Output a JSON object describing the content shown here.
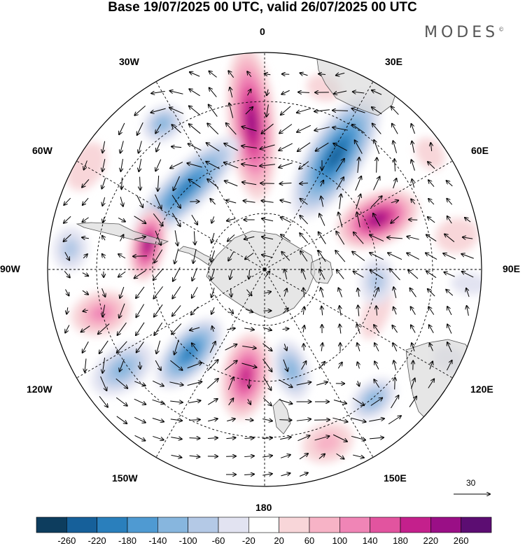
{
  "header": {
    "title": "Base 19/07/2025 00 UTC, valid 26/07/2025 00 UTC",
    "brand": "MODES",
    "brand_mark": "©"
  },
  "map": {
    "projection": "polar-stereographic-south",
    "longitude_labels": {
      "top": "0",
      "bottom": "180",
      "left": "90W",
      "right": "90E",
      "ul1": "30W",
      "ul2": "60W",
      "ur1": "30E",
      "ur2": "60E",
      "ll1": "120W",
      "ll2": "150W",
      "lr1": "120E",
      "lr2": "150E"
    },
    "vector_scale": {
      "value": "30"
    },
    "anomaly_centers": [
      {
        "lon": -5,
        "r": 0.68,
        "value": 260,
        "rx": 0.11,
        "ry": 0.36
      },
      {
        "lon": 32,
        "r": 0.62,
        "value": -240,
        "rx": 0.13,
        "ry": 0.33
      },
      {
        "lon": 66,
        "r": 0.57,
        "value": 250,
        "rx": 0.12,
        "ry": 0.2
      },
      {
        "lon": -44,
        "r": 0.52,
        "value": -200,
        "rx": 0.33,
        "ry": 0.1
      },
      {
        "lon": -35,
        "r": 0.82,
        "value": -120,
        "rx": 0.1,
        "ry": 0.08
      },
      {
        "lon": -78,
        "r": 0.55,
        "value": 240,
        "rx": 0.17,
        "ry": 0.08
      },
      {
        "lon": -84,
        "r": 0.9,
        "value": -80,
        "rx": 0.1,
        "ry": 0.08
      },
      {
        "lon": -105,
        "r": 0.78,
        "value": 120,
        "rx": 0.1,
        "ry": 0.14
      },
      {
        "lon": -138,
        "r": 0.52,
        "value": -200,
        "rx": 0.1,
        "ry": 0.2
      },
      {
        "lon": -125,
        "r": 0.8,
        "value": -130,
        "rx": 0.1,
        "ry": 0.16
      },
      {
        "lon": -170,
        "r": 0.5,
        "value": 200,
        "rx": 0.11,
        "ry": 0.2
      },
      {
        "lon": 165,
        "r": 0.48,
        "value": -140,
        "rx": 0.08,
        "ry": 0.14
      },
      {
        "lon": 140,
        "r": 0.78,
        "value": -150,
        "rx": 0.12,
        "ry": 0.08
      },
      {
        "lon": 160,
        "r": 0.85,
        "value": 110,
        "rx": 0.12,
        "ry": 0.09
      },
      {
        "lon": 110,
        "r": 0.55,
        "value": 60,
        "rx": 0.14,
        "ry": 0.06
      },
      {
        "lon": 96,
        "r": 0.52,
        "value": -100,
        "rx": 0.11,
        "ry": 0.08
      },
      {
        "lon": 116,
        "r": 0.95,
        "value": -60,
        "rx": 0.06,
        "ry": 0.08
      },
      {
        "lon": 80,
        "r": 0.9,
        "value": 60,
        "rx": 0.08,
        "ry": 0.1
      },
      {
        "lon": 94,
        "r": 0.95,
        "value": -60,
        "rx": 0.05,
        "ry": 0.09
      },
      {
        "lon": -60,
        "r": 0.95,
        "value": 50,
        "rx": 0.12,
        "ry": 0.08
      },
      {
        "lon": 18,
        "r": 0.88,
        "value": 70,
        "rx": 0.08,
        "ry": 0.06
      },
      {
        "lon": 55,
        "r": 0.93,
        "value": 50,
        "rx": 0.08,
        "ry": 0.06
      }
    ]
  },
  "colorbar": {
    "colors": [
      "#0d3d5e",
      "#16609a",
      "#2a7fbc",
      "#4f9ad2",
      "#87b6de",
      "#b4c9e6",
      "#e2e3f1",
      "#ffffff",
      "#f8d6d9",
      "#f7b3c6",
      "#f085b6",
      "#e2549f",
      "#c4208c",
      "#9a0f86",
      "#5c0d72"
    ],
    "tick_labels": [
      "-260",
      "-220",
      "-180",
      "-140",
      "-100",
      "-60",
      "-20",
      "20",
      "60",
      "100",
      "140",
      "180",
      "220",
      "260"
    ],
    "range": [
      -280,
      280
    ]
  }
}
